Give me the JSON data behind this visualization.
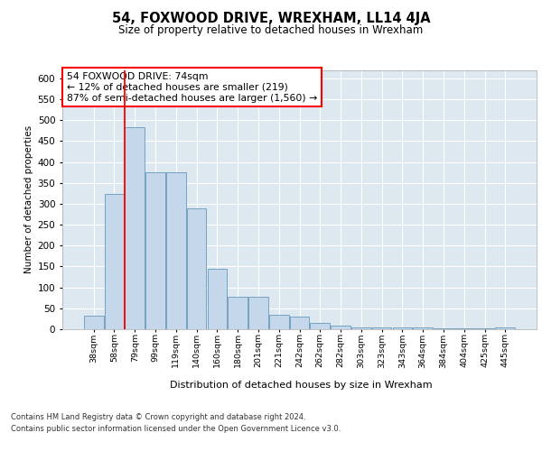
{
  "title": "54, FOXWOOD DRIVE, WREXHAM, LL14 4JA",
  "subtitle": "Size of property relative to detached houses in Wrexham",
  "xlabel": "Distribution of detached houses by size in Wrexham",
  "ylabel": "Number of detached properties",
  "categories": [
    "38sqm",
    "58sqm",
    "79sqm",
    "99sqm",
    "119sqm",
    "140sqm",
    "160sqm",
    "180sqm",
    "201sqm",
    "221sqm",
    "242sqm",
    "262sqm",
    "282sqm",
    "303sqm",
    "323sqm",
    "343sqm",
    "364sqm",
    "384sqm",
    "404sqm",
    "425sqm",
    "445sqm"
  ],
  "values": [
    32,
    323,
    483,
    376,
    376,
    290,
    145,
    77,
    77,
    35,
    30,
    15,
    8,
    5,
    5,
    5,
    5,
    3,
    3,
    3,
    5
  ],
  "bar_color": "#c5d8eb",
  "bar_edge_color": "#6699bb",
  "red_line_x": 1.5,
  "annotation_text": "54 FOXWOOD DRIVE: 74sqm\n← 12% of detached houses are smaller (219)\n87% of semi-detached houses are larger (1,560) →",
  "ylim_max": 620,
  "yticks": [
    0,
    50,
    100,
    150,
    200,
    250,
    300,
    350,
    400,
    450,
    500,
    550,
    600
  ],
  "bg_color": "#dde8f0",
  "grid_color": "white",
  "footer_line1": "Contains HM Land Registry data © Crown copyright and database right 2024.",
  "footer_line2": "Contains public sector information licensed under the Open Government Licence v3.0."
}
